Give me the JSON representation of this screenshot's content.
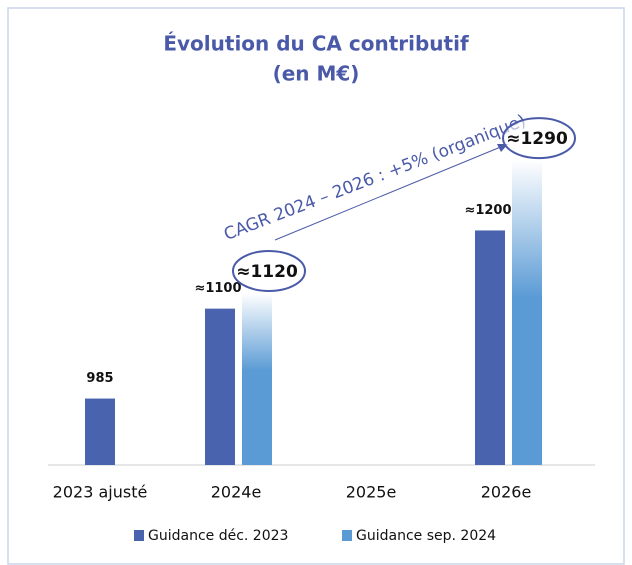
{
  "chart_data": {
    "type": "bar",
    "title": "Évolution du CA contributif",
    "subtitle": "(en M€)",
    "categories": [
      "2023 ajusté",
      "2024e",
      "2025e",
      "2026e"
    ],
    "series": [
      {
        "name": "Guidance déc. 2023",
        "color": "#4a63ae",
        "values": [
          985,
          1100,
          null,
          1200
        ],
        "value_labels": [
          "985",
          "≈1100",
          null,
          "≈1200"
        ]
      },
      {
        "name": "Guidance sep. 2024",
        "color": "#5b9bd5",
        "values": [
          null,
          1120,
          null,
          1290
        ],
        "value_labels": [
          null,
          "≈1120",
          null,
          "≈1290"
        ]
      }
    ],
    "annotation": "CAGR 2024 – 2026 : +5% (organique)",
    "ylim": [
      900,
      1340
    ],
    "legend": "bottom"
  }
}
